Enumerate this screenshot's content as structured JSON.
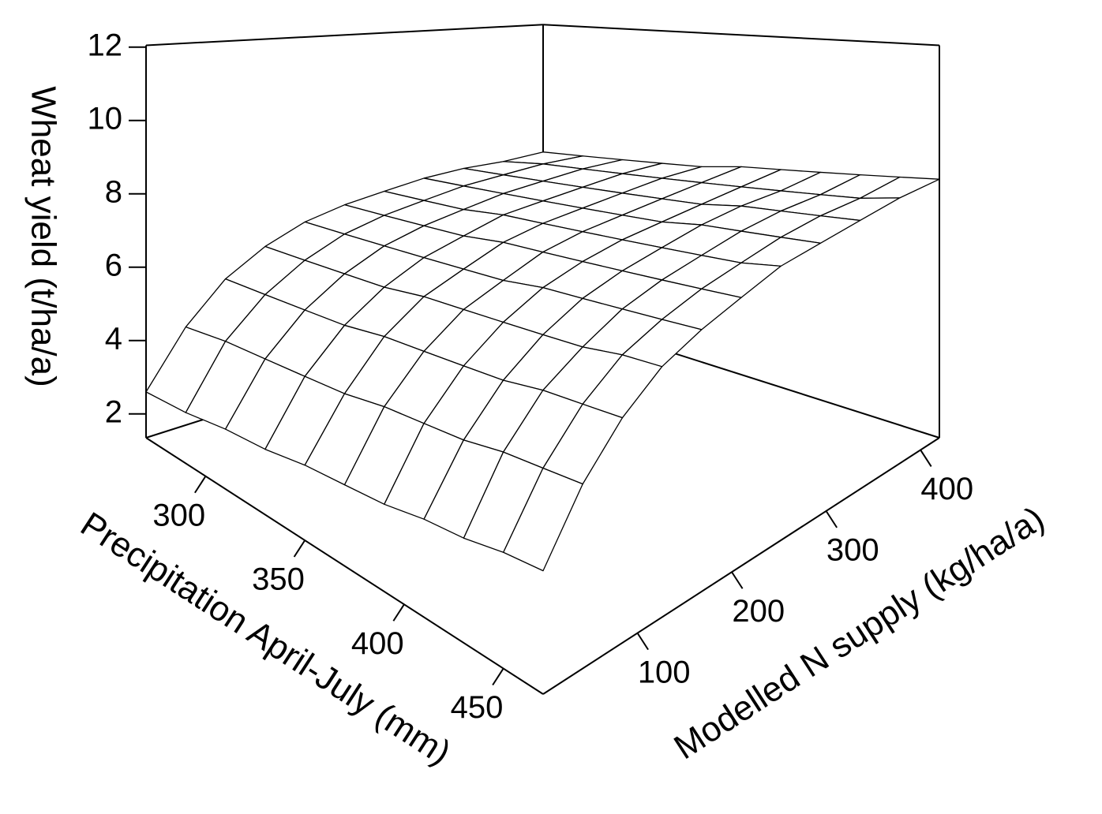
{
  "chart_data": {
    "type": "surface",
    "x_label": "Precipitation April-July (mm)",
    "y_label": "Modelled N supply (kg/ha/a)",
    "z_label": "Wheat yield (t/ha/a)",
    "x": [
      270,
      290,
      310,
      330,
      350,
      370,
      390,
      410,
      430,
      450,
      470
    ],
    "y": [
      0,
      42,
      84,
      126,
      168,
      210,
      252,
      294,
      336,
      378,
      420
    ],
    "z": [
      [
        2.6,
        4.1,
        5.2,
        5.9,
        6.4,
        6.7,
        6.9,
        7.1,
        7.2,
        7.2,
        7.3
      ],
      [
        2.7,
        4.3,
        5.3,
        6.0,
        6.5,
        6.8,
        7.0,
        7.2,
        7.3,
        7.4,
        7.4
      ],
      [
        2.9,
        4.4,
        5.4,
        6.1,
        6.6,
        6.9,
        7.1,
        7.3,
        7.4,
        7.5,
        7.5
      ],
      [
        3.0,
        4.5,
        5.5,
        6.2,
        6.7,
        7.0,
        7.3,
        7.4,
        7.5,
        7.6,
        7.6
      ],
      [
        3.2,
        4.6,
        5.7,
        6.4,
        6.8,
        7.2,
        7.4,
        7.5,
        7.6,
        7.7,
        7.7
      ],
      [
        3.3,
        4.8,
        5.8,
        6.5,
        6.9,
        7.3,
        7.5,
        7.6,
        7.7,
        7.8,
        7.9
      ],
      [
        3.4,
        4.9,
        5.9,
        6.6,
        7.1,
        7.4,
        7.6,
        7.7,
        7.8,
        7.9,
        8.0
      ],
      [
        3.6,
        5.0,
        6.0,
        6.7,
        7.2,
        7.5,
        7.7,
        7.9,
        8.0,
        8.0,
        8.1
      ],
      [
        3.7,
        5.2,
        6.2,
        6.8,
        7.3,
        7.6,
        7.8,
        8.0,
        8.1,
        8.1,
        8.2
      ],
      [
        3.9,
        5.3,
        6.3,
        7.0,
        7.4,
        7.7,
        7.9,
        8.1,
        8.2,
        8.2,
        8.3
      ],
      [
        4.0,
        5.4,
        6.4,
        7.1,
        7.5,
        7.8,
        8.1,
        8.2,
        8.3,
        8.4,
        8.4
      ]
    ],
    "xlim": [
      270,
      470
    ],
    "ylim": [
      0,
      420
    ],
    "zlim": [
      1.35,
      12.05
    ],
    "xticks": [
      300,
      350,
      400,
      450
    ],
    "yticks": [
      100,
      200,
      300,
      400
    ],
    "zticks": [
      2,
      4,
      6,
      8,
      10,
      12
    ],
    "color": "#ffffff",
    "line_color": "#000000"
  }
}
